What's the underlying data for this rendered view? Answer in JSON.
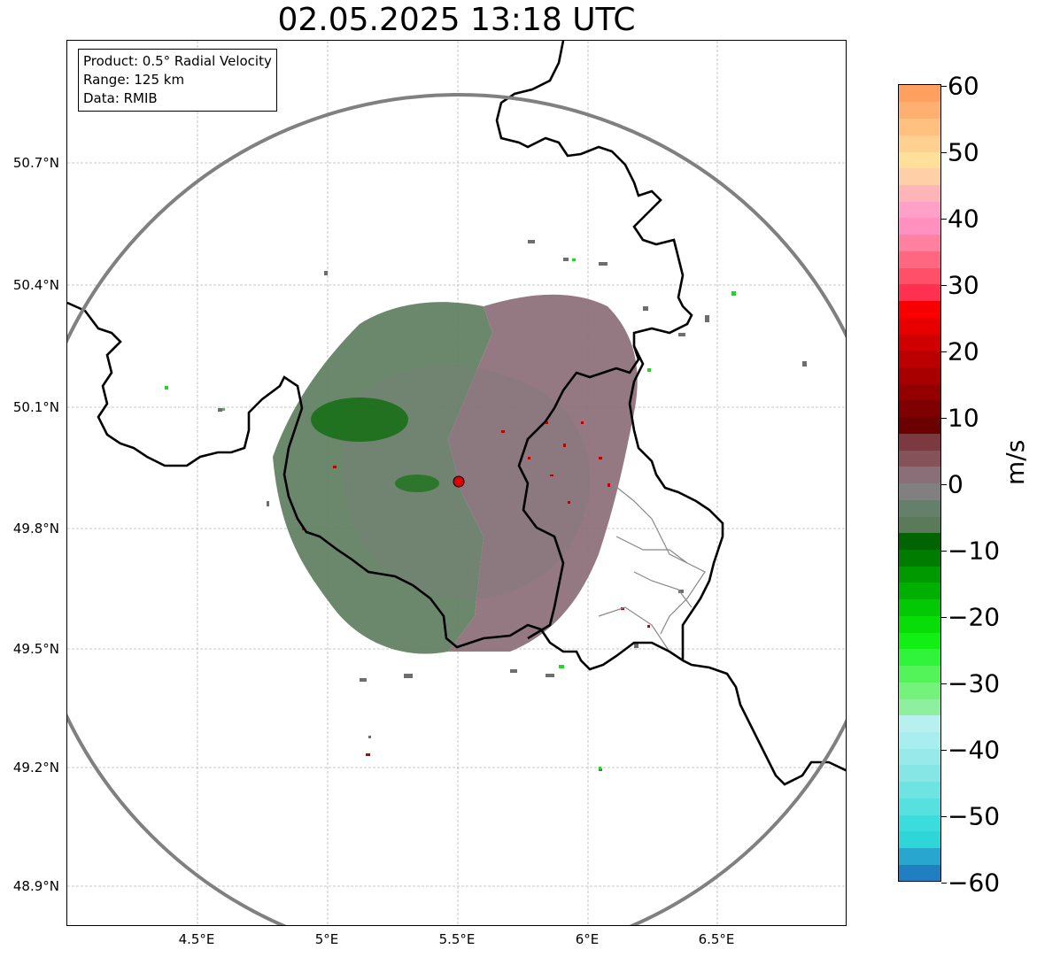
{
  "title": "02.05.2025 13:18 UTC",
  "info_box": {
    "product": "Product: 0.5° Radial Velocity",
    "range": "Range: 125 km",
    "data": "Data: RMIB"
  },
  "lat_labels": [
    "50.7°N",
    "50.4°N",
    "50.1°N",
    "49.8°N",
    "49.5°N",
    "49.2°N",
    "48.9°N"
  ],
  "lon_labels": [
    "4.5°E",
    "5°E",
    "5.5°E",
    "6°E",
    "6.5°E"
  ],
  "colorbar": {
    "unit": "m/s",
    "tick_labels": [
      "60",
      "50",
      "40",
      "30",
      "20",
      "10",
      "0",
      "−10",
      "−20",
      "−30",
      "−40",
      "−50",
      "−60"
    ],
    "vmin": -60,
    "vmax": 60,
    "colors": [
      "#1f7fc1",
      "#29a6d0",
      "#2fd6d8",
      "#3adcdc",
      "#56e0e0",
      "#6ee4e2",
      "#86e6e6",
      "#98eaea",
      "#a8eeee",
      "#b8f0f0",
      "#8ef09e",
      "#74f27a",
      "#52f45a",
      "#30f43a",
      "#12ef12",
      "#08dd08",
      "#04c804",
      "#00b000",
      "#009a00",
      "#007c00",
      "#006400",
      "#5a7a5a",
      "#65806a",
      "#808080",
      "#8a6e78",
      "#86525a",
      "#7a3a40",
      "#6a0000",
      "#7e0000",
      "#940000",
      "#a80000",
      "#bc0000",
      "#d00000",
      "#e80000",
      "#f80000",
      "#ff3050",
      "#ff5068",
      "#ff6680",
      "#ff80a0",
      "#ff90c0",
      "#ffa0c8",
      "#ffb4b8",
      "#ffd0a8",
      "#ffe09a",
      "#ffd090",
      "#ffc080",
      "#ffb070",
      "#ffa060"
    ]
  },
  "radar_site": {
    "lon": 5.5,
    "lat": 49.914
  },
  "colors": {
    "border": "#000000",
    "range_ring": "#808080",
    "grid": "#b0b0b0",
    "site_marker": "#e00000"
  }
}
